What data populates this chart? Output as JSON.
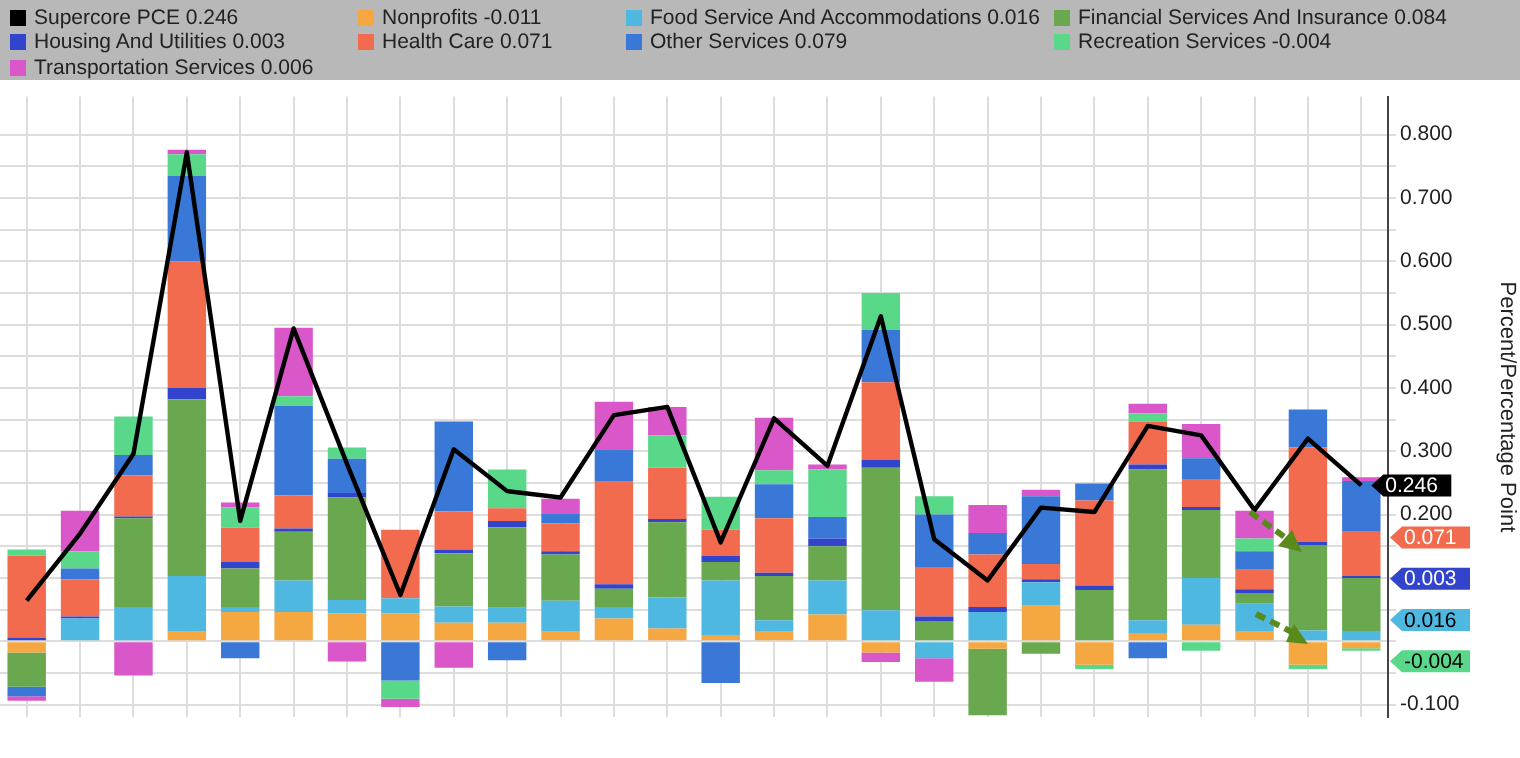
{
  "chart_data": {
    "type": "bar",
    "stacked": true,
    "legend": "top",
    "grid": true,
    "marker": "none",
    "ylabel": "Percent/Percentage Point",
    "categories": [
      null,
      null,
      null,
      null,
      null,
      null,
      null,
      null,
      null,
      null,
      null,
      null,
      null,
      null,
      null,
      null,
      null,
      null,
      null,
      null,
      null,
      null,
      null,
      null,
      null,
      null
    ],
    "ylim": [
      -0.12,
      0.86
    ],
    "annotations": [
      "0.071",
      "0.003",
      "0.016",
      "-0.004"
    ],
    "yticks": [
      {
        "value": -0.1,
        "label": "-0.100"
      },
      {
        "value": -0.05,
        "label": null
      },
      {
        "value": 0,
        "label": null
      },
      {
        "value": 0.05,
        "label": null
      },
      {
        "value": 0.1,
        "label": null
      },
      {
        "value": 0.15,
        "label": null
      },
      {
        "value": 0.2,
        "label": "0.200"
      },
      {
        "value": 0.25,
        "label": null
      },
      {
        "value": 0.3,
        "label": "0.300"
      },
      {
        "value": 0.35,
        "label": null
      },
      {
        "value": 0.4,
        "label": "0.400"
      },
      {
        "value": 0.45,
        "label": null
      },
      {
        "value": 0.5,
        "label": "0.500"
      },
      {
        "value": 0.55,
        "label": null
      },
      {
        "value": 0.6,
        "label": "0.600"
      },
      {
        "value": 0.65,
        "label": null
      },
      {
        "value": 0.7,
        "label": "0.700"
      },
      {
        "value": 0.75,
        "label": null
      },
      {
        "value": 0.8,
        "label": "0.800"
      }
    ],
    "series": [
      {
        "name": "Supercore PCE 0.246",
        "type": "line",
        "color": "#000000",
        "values": [
          0.064,
          0.17,
          0.296,
          0.772,
          0.19,
          0.494,
          0.28,
          0.073,
          0.303,
          0.237,
          0.227,
          0.357,
          0.37,
          0.156,
          0.352,
          0.277,
          0.513,
          0.161,
          0.096,
          0.211,
          0.204,
          0.34,
          0.325,
          0.207,
          0.32,
          0.246
        ],
        "value_labels": [
          null,
          null,
          null,
          null,
          null,
          null,
          null,
          null,
          null,
          null,
          null,
          null,
          null,
          null,
          null,
          null,
          null,
          null,
          null,
          null,
          null,
          null,
          null,
          null,
          null,
          "0.246"
        ]
      },
      {
        "name": "Nonprofits -0.011",
        "color": "#f5a742",
        "values": [
          -0.018,
          0,
          0,
          0.015,
          0.046,
          0.046,
          0.044,
          0.044,
          0.029,
          0.029,
          0.015,
          0.036,
          0.02,
          0.01,
          0.015,
          0.042,
          -0.018,
          0,
          -0.012,
          0.056,
          -0.037,
          0.013,
          0.026,
          0.015,
          -0.037,
          -0.011
        ]
      },
      {
        "name": "Food Service And Accommodations 0.016",
        "color": "#4fb8e0",
        "values": [
          0,
          0.036,
          0.054,
          0.088,
          0.008,
          0.05,
          0.021,
          0.024,
          0.026,
          0.024,
          0.049,
          0.018,
          0.049,
          0.086,
          0.018,
          0.054,
          0.049,
          -0.027,
          0.046,
          0.037,
          0,
          0.02,
          0.074,
          0.044,
          0.017,
          0.016
        ]
      },
      {
        "name": "Financial Services And Insurance 0.084",
        "color": "#6aa84f",
        "values": [
          -0.054,
          0,
          0.14,
          0.279,
          0.061,
          0.077,
          0.162,
          0,
          0.084,
          0.127,
          0.073,
          0.029,
          0.119,
          0.029,
          0.07,
          0.054,
          0.225,
          0.032,
          -0.105,
          -0.02,
          0.081,
          0.238,
          0.107,
          0.017,
          0.135,
          0.084
        ]
      },
      {
        "name": "Housing And Utilities 0.003",
        "color": "#3344cc",
        "values": [
          0.005,
          0.003,
          0.003,
          0.018,
          0.01,
          0.005,
          0.007,
          0,
          0.005,
          0.01,
          0.005,
          0.007,
          0.005,
          0.01,
          0.005,
          0.012,
          0.012,
          0.007,
          0.008,
          0.005,
          0.007,
          0.008,
          0.005,
          0.006,
          0.005,
          0.003
        ]
      },
      {
        "name": "Health Care 0.071",
        "color": "#f26b4f",
        "values": [
          0.13,
          0.059,
          0.065,
          0.2,
          0.054,
          0.052,
          0,
          0.108,
          0.061,
          0.02,
          0.044,
          0.162,
          0.081,
          0.041,
          0.086,
          0,
          0.123,
          0.078,
          0.083,
          0.024,
          0.134,
          0.068,
          0.044,
          0.031,
          0.149,
          0.071
        ]
      },
      {
        "name": "Other Services 0.079",
        "color": "#3a78d8",
        "values": [
          -0.015,
          0.017,
          0.032,
          0.135,
          -0.027,
          0.142,
          0.054,
          -0.062,
          0.142,
          -0.03,
          0.015,
          0.051,
          0,
          -0.066,
          0.054,
          0.034,
          0.083,
          0.083,
          0.034,
          0.107,
          0.027,
          -0.027,
          0.033,
          0.029,
          0.06,
          0.079
        ]
      },
      {
        "name": "Recreation Services -0.004",
        "color": "#5ad88a",
        "values": [
          0.01,
          0.027,
          0.061,
          0.034,
          0.032,
          0.015,
          0.018,
          -0.029,
          0,
          0.061,
          0,
          0,
          0.051,
          0.052,
          0.022,
          0.075,
          0.058,
          0.029,
          0,
          0,
          -0.007,
          0.013,
          -0.015,
          0.02,
          -0.007,
          -0.004
        ]
      },
      {
        "name": "Transportation Services 0.006",
        "color": "#d957c8",
        "values": [
          -0.007,
          0.064,
          -0.054,
          0.007,
          0.008,
          0.108,
          -0.032,
          -0.013,
          -0.042,
          0,
          0.024,
          0.075,
          0.045,
          0,
          0.083,
          0.008,
          -0.015,
          -0.037,
          0.044,
          0.01,
          0,
          0.015,
          0.054,
          0.044,
          0,
          0.006
        ]
      }
    ]
  }
}
